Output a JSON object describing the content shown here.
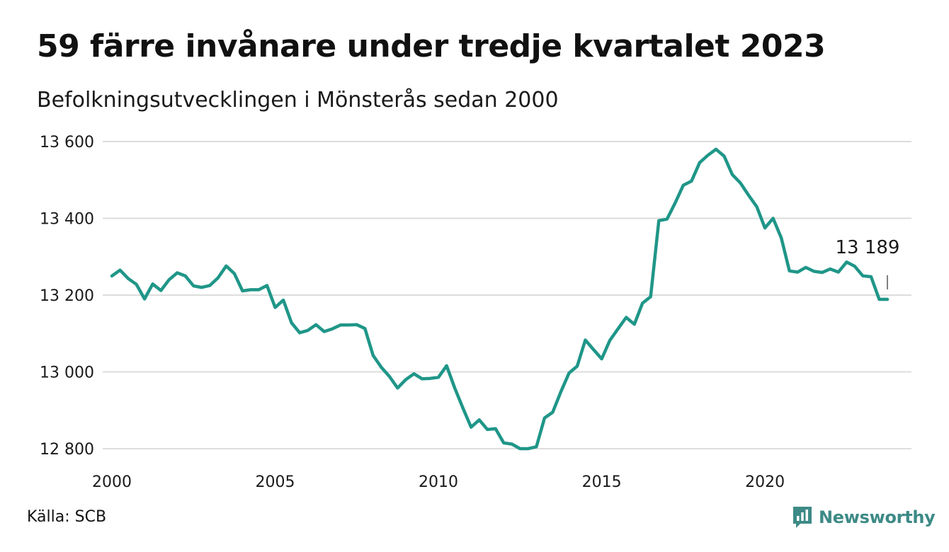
{
  "header": {
    "title": "59 färre invånare under tredje kvartalet 2023",
    "subtitle": "Befolkningsutvecklingen i Mönsterås sedan 2000"
  },
  "footer": {
    "source": "Källa: SCB",
    "brand": "Newsworthy",
    "brand_icon": "bar-chart-speech-bubble-icon"
  },
  "colors": {
    "line": "#1f9688",
    "grid": "#dddddd",
    "brand": "#3d8a86"
  },
  "chart_data": {
    "type": "line",
    "title": "59 färre invånare under tredje kvartalet 2023",
    "subtitle": "Befolkningsutvecklingen i Mönsterås sedan 2000",
    "xlabel": "",
    "ylabel": "",
    "xlim": [
      2000,
      2023.75
    ],
    "ylim": [
      12800,
      13600
    ],
    "x_ticks": [
      2000,
      2005,
      2010,
      2015,
      2020
    ],
    "x_tick_labels": [
      "2000",
      "2005",
      "2010",
      "2015",
      "2020"
    ],
    "y_ticks": [
      12800,
      13000,
      13200,
      13400,
      13600
    ],
    "y_tick_labels": [
      "12 800",
      "13 000",
      "13 200",
      "13 400",
      "13 600"
    ],
    "grid": "horizontal",
    "end_label": "13 189",
    "series": [
      {
        "name": "",
        "x": [
          2000.0,
          2000.25,
          2000.5,
          2000.75,
          2001.0,
          2001.25,
          2001.5,
          2001.75,
          2002.0,
          2002.25,
          2002.5,
          2002.75,
          2003.0,
          2003.25,
          2003.5,
          2003.75,
          2004.0,
          2004.25,
          2004.5,
          2004.75,
          2005.0,
          2005.25,
          2005.5,
          2005.75,
          2006.0,
          2006.25,
          2006.5,
          2006.75,
          2007.0,
          2007.25,
          2007.5,
          2007.75,
          2008.0,
          2008.25,
          2008.5,
          2008.75,
          2009.0,
          2009.25,
          2009.5,
          2009.75,
          2010.0,
          2010.25,
          2010.5,
          2010.75,
          2011.0,
          2011.25,
          2011.5,
          2011.75,
          2012.0,
          2012.25,
          2012.5,
          2012.75,
          2013.0,
          2013.25,
          2013.5,
          2013.75,
          2014.0,
          2014.25,
          2014.5,
          2014.75,
          2015.0,
          2015.25,
          2015.5,
          2015.75,
          2016.0,
          2016.25,
          2016.5,
          2016.75,
          2017.0,
          2017.25,
          2017.5,
          2017.75,
          2018.0,
          2018.25,
          2018.5,
          2018.75,
          2019.0,
          2019.25,
          2019.5,
          2019.75,
          2020.0,
          2020.25,
          2020.5,
          2020.75,
          2021.0,
          2021.25,
          2021.5,
          2021.75,
          2022.0,
          2022.25,
          2022.5,
          2022.75,
          2023.0,
          2023.25,
          2023.5,
          2023.75
        ],
        "values": [
          13250,
          13265,
          13243,
          13228,
          13190,
          13229,
          13212,
          13240,
          13258,
          13250,
          13224,
          13220,
          13225,
          13245,
          13276,
          13256,
          13211,
          13214,
          13214,
          13225,
          13168,
          13187,
          13128,
          13102,
          13108,
          13123,
          13105,
          13112,
          13122,
          13122,
          13123,
          13113,
          13043,
          13012,
          12988,
          12958,
          12980,
          12995,
          12982,
          12983,
          12986,
          13016,
          12958,
          12906,
          12856,
          12875,
          12850,
          12852,
          12815,
          12812,
          12800,
          12800,
          12805,
          12880,
          12895,
          12948,
          12997,
          13015,
          13083,
          13058,
          13034,
          13082,
          13112,
          13142,
          13124,
          13179,
          13196,
          13394,
          13398,
          13440,
          13486,
          13497,
          13545,
          13564,
          13580,
          13562,
          13514,
          13492,
          13460,
          13430,
          13375,
          13400,
          13349,
          13263,
          13260,
          13272,
          13262,
          13259,
          13268,
          13260,
          13286,
          13275,
          13250,
          13248,
          13189,
          13189
        ]
      }
    ]
  }
}
